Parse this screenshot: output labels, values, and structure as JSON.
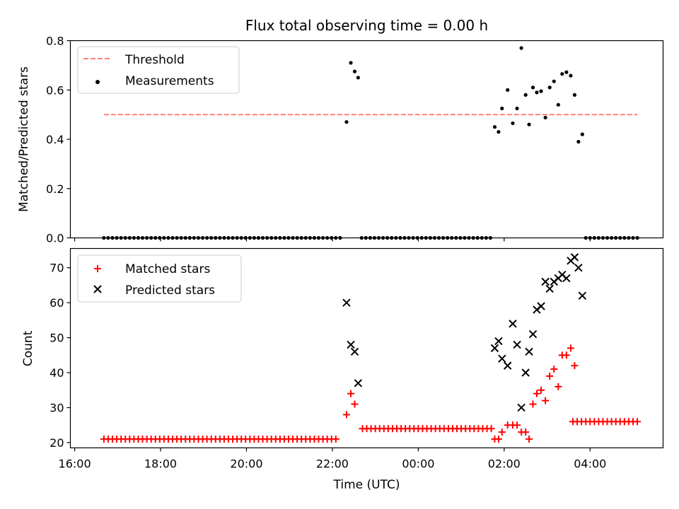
{
  "chart_data": [
    {
      "type": "scatter",
      "title": "Flux total observing time = 0.00 h",
      "xlabel": "",
      "ylabel": "Matched/Predicted stars",
      "ylim": [
        0,
        0.8
      ],
      "yticks": [
        "0.0",
        "0.2",
        "0.4",
        "0.6",
        "0.8"
      ],
      "legend_position": "top-left",
      "threshold": {
        "name": "Threshold",
        "value": 0.5,
        "x_start": 16.68,
        "x_end": 29.1,
        "color": "#ff7f7f",
        "style": "dashed"
      },
      "series": [
        {
          "name": "Measurements",
          "color": "#000000",
          "marker": "dot",
          "points": [
            [
              22.33,
              0.47
            ],
            [
              22.43,
              0.71
            ],
            [
              22.52,
              0.675
            ],
            [
              22.6,
              0.65
            ],
            [
              25.78,
              0.45
            ],
            [
              25.87,
              0.43
            ],
            [
              25.95,
              0.525
            ],
            [
              26.08,
              0.6
            ],
            [
              26.2,
              0.465
            ],
            [
              26.3,
              0.525
            ],
            [
              26.4,
              0.77
            ],
            [
              26.5,
              0.58
            ],
            [
              26.58,
              0.46
            ],
            [
              26.67,
              0.61
            ],
            [
              26.76,
              0.59
            ],
            [
              26.86,
              0.595
            ],
            [
              26.96,
              0.488
            ],
            [
              27.06,
              0.61
            ],
            [
              27.16,
              0.635
            ],
            [
              27.26,
              0.54
            ],
            [
              27.35,
              0.665
            ],
            [
              27.45,
              0.672
            ],
            [
              27.55,
              0.658
            ],
            [
              27.64,
              0.58
            ],
            [
              27.73,
              0.39
            ],
            [
              27.82,
              0.42
            ]
          ],
          "zero_runs": [
            [
              16.68,
              22.25
            ],
            [
              22.68,
              25.75
            ],
            [
              27.9,
              29.1
            ]
          ],
          "zero_step_hours": 0.1
        }
      ]
    },
    {
      "type": "scatter",
      "title": "",
      "xlabel": "Time (UTC)",
      "ylabel": "Count",
      "ylim": [
        18.5,
        75.5
      ],
      "yticks": [
        "20",
        "30",
        "40",
        "50",
        "60",
        "70"
      ],
      "xlim": [
        15.9,
        29.7
      ],
      "xticks": [
        "16:00",
        "18:00",
        "20:00",
        "22:00",
        "00:00",
        "02:00",
        "04:00"
      ],
      "xtick_hours": [
        16,
        18,
        20,
        22,
        24,
        26,
        28
      ],
      "legend_position": "top-left",
      "series": [
        {
          "name": "Matched stars",
          "color": "#ff0000",
          "marker": "plus",
          "runs": [
            [
              16.68,
              22.15,
              21
            ],
            [
              22.7,
              25.75,
              24
            ],
            [
              27.6,
              29.1,
              26
            ]
          ],
          "run_step_hours": 0.1,
          "points": [
            [
              22.33,
              28
            ],
            [
              22.43,
              34
            ],
            [
              22.52,
              31
            ],
            [
              25.78,
              21
            ],
            [
              25.87,
              21
            ],
            [
              25.95,
              23
            ],
            [
              26.08,
              25
            ],
            [
              26.2,
              25
            ],
            [
              26.3,
              25
            ],
            [
              26.4,
              23
            ],
            [
              26.5,
              23
            ],
            [
              26.58,
              21
            ],
            [
              26.67,
              31
            ],
            [
              26.76,
              34
            ],
            [
              26.86,
              35
            ],
            [
              26.96,
              32
            ],
            [
              27.06,
              39
            ],
            [
              27.16,
              41
            ],
            [
              27.26,
              36
            ],
            [
              27.35,
              45
            ],
            [
              27.45,
              45
            ],
            [
              27.55,
              47
            ],
            [
              27.64,
              42
            ]
          ]
        },
        {
          "name": "Predicted stars",
          "color": "#000000",
          "marker": "x",
          "points": [
            [
              22.33,
              60
            ],
            [
              22.43,
              48
            ],
            [
              22.52,
              46
            ],
            [
              22.6,
              37
            ],
            [
              25.78,
              47
            ],
            [
              25.87,
              49
            ],
            [
              25.95,
              44
            ],
            [
              26.08,
              42
            ],
            [
              26.2,
              54
            ],
            [
              26.3,
              48
            ],
            [
              26.4,
              30
            ],
            [
              26.5,
              40
            ],
            [
              26.58,
              46
            ],
            [
              26.67,
              51
            ],
            [
              26.76,
              58
            ],
            [
              26.86,
              59
            ],
            [
              26.96,
              66
            ],
            [
              27.06,
              64
            ],
            [
              27.16,
              66
            ],
            [
              27.26,
              67
            ],
            [
              27.35,
              68
            ],
            [
              27.45,
              67
            ],
            [
              27.55,
              72
            ],
            [
              27.64,
              73
            ],
            [
              27.73,
              70
            ],
            [
              27.82,
              62
            ]
          ]
        }
      ]
    }
  ]
}
